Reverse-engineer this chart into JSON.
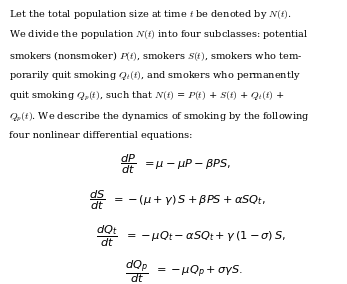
{
  "background_color": "#ffffff",
  "text_color": "#000000",
  "body_lines": [
    "Let the total population size at time $t$ be denoted by $N(t)$.",
    "We divide the population $N(t)$ into four subclasses: potential",
    "smokers (nonsmoker) $P(t)$, smokers $S(t)$, smokers who tem-",
    "porarily quit smoking $Q_t(t)$, and smokers who permanently",
    "quit smoking $Q_p(t)$, such that $N(t)$ = $P(t)$ + $S(t)$ + $Q_t(t)$ +",
    "$Q_p(t)$. We describe the dynamics of smoking by the following",
    "four nonlinear differential equations:"
  ],
  "eq1_lhs": "$\\dfrac{dP}{dt}$",
  "eq1_rhs": "$= \\mu - \\mu P - \\beta PS,$",
  "eq2_lhs": "$\\dfrac{dS}{dt}$",
  "eq2_rhs": "$= -(\\mu + \\gamma)\\,S + \\beta PS + \\alpha SQ_t,$",
  "eq3_lhs": "$\\dfrac{dQ_t}{dt}$",
  "eq3_rhs": "$= -\\mu Q_t - \\alpha SQ_t + \\gamma\\,(1 - \\sigma)\\,S,$",
  "eq4_lhs": "$\\dfrac{dQ_p}{dt}$",
  "eq4_rhs": "$= -\\mu Q_p + \\sigma\\gamma S.$",
  "body_fontsize": 7.0,
  "eq_fontsize": 8.2,
  "figsize": [
    3.47,
    2.84
  ],
  "dpi": 100
}
